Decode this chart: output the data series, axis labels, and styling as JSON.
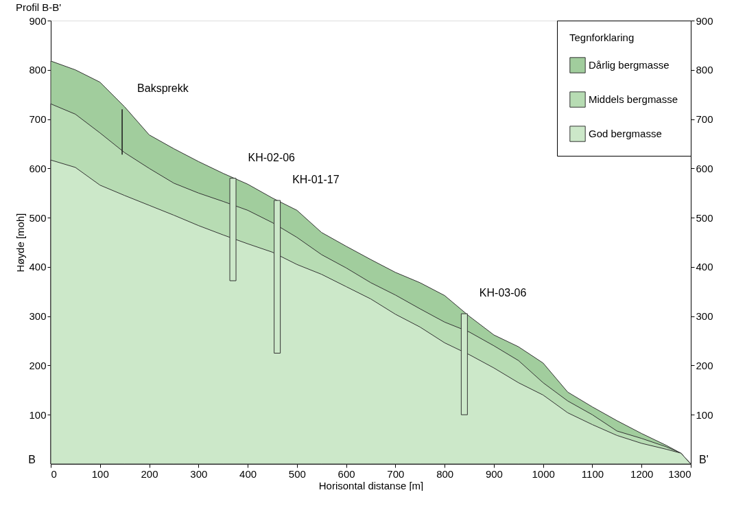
{
  "chart_data": {
    "type": "area",
    "title": "Profil B-B'",
    "xlabel": "Horisontal distanse [m]",
    "ylabel": "Høyde [moh]",
    "legend_title": "Tegnforklaring",
    "legend": "top right",
    "grid": false,
    "x": [
      0,
      50,
      100,
      150,
      200,
      250,
      300,
      350,
      400,
      450,
      500,
      550,
      600,
      650,
      700,
      750,
      800,
      850,
      900,
      950,
      1000,
      1050,
      1100,
      1150,
      1200,
      1250,
      1280,
      1300
    ],
    "xlim": [
      0,
      1300
    ],
    "xticks": [
      0,
      100,
      200,
      300,
      400,
      500,
      600,
      700,
      800,
      900,
      1000,
      1100,
      1200,
      1300
    ],
    "ylim": [
      0,
      900
    ],
    "yticks": [
      100,
      200,
      300,
      400,
      500,
      600,
      700,
      800,
      900
    ],
    "y2lim": [
      0,
      900
    ],
    "y2ticks": [
      100,
      200,
      300,
      400,
      500,
      600,
      700,
      800,
      900
    ],
    "series": [
      {
        "name": "Dårlig bergmasse",
        "color": "#a1cd9d",
        "values": [
          818,
          800,
          775,
          725,
          668,
          640,
          614,
          590,
          568,
          540,
          515,
          470,
          442,
          415,
          389,
          368,
          342,
          300,
          262,
          238,
          205,
          146,
          116,
          88,
          62,
          38,
          22,
          0
        ]
      },
      {
        "name": "Middels bergmasse",
        "color": "#b7dcb3",
        "values": [
          731,
          710,
          672,
          632,
          600,
          570,
          550,
          533,
          515,
          490,
          460,
          425,
          398,
          368,
          343,
          315,
          288,
          268,
          240,
          210,
          165,
          128,
          100,
          67,
          52,
          35,
          22,
          0
        ]
      },
      {
        "name": "God bergmasse",
        "color": "#cce8c9",
        "values": [
          617,
          602,
          566,
          545,
          525,
          505,
          484,
          465,
          447,
          430,
          405,
          385,
          360,
          335,
          304,
          278,
          246,
          222,
          195,
          165,
          140,
          104,
          80,
          58,
          42,
          30,
          22,
          0
        ]
      },
      {
        "type": "bar",
        "color": "#cce8c9",
        "x": [
          370,
          460,
          840
        ],
        "base": [
          372,
          225,
          100
        ],
        "values": [
          208,
          310,
          205
        ]
      },
      {
        "type": "line",
        "color": "#222222",
        "x": [
          145,
          145
        ],
        "values": [
          628,
          720
        ]
      }
    ],
    "annotations": [
      {
        "text": "Baksprekk",
        "x": 145,
        "y": 720
      },
      {
        "text": "KH-02-06",
        "x": 370,
        "y": 580
      },
      {
        "text": "KH-01-17",
        "x": 460,
        "y": 535
      },
      {
        "text": "KH-03-06",
        "x": 840,
        "y": 305
      },
      {
        "text": "B",
        "x": 0,
        "y": 0
      },
      {
        "text": "B'",
        "x": 1300,
        "y": 0
      }
    ]
  }
}
